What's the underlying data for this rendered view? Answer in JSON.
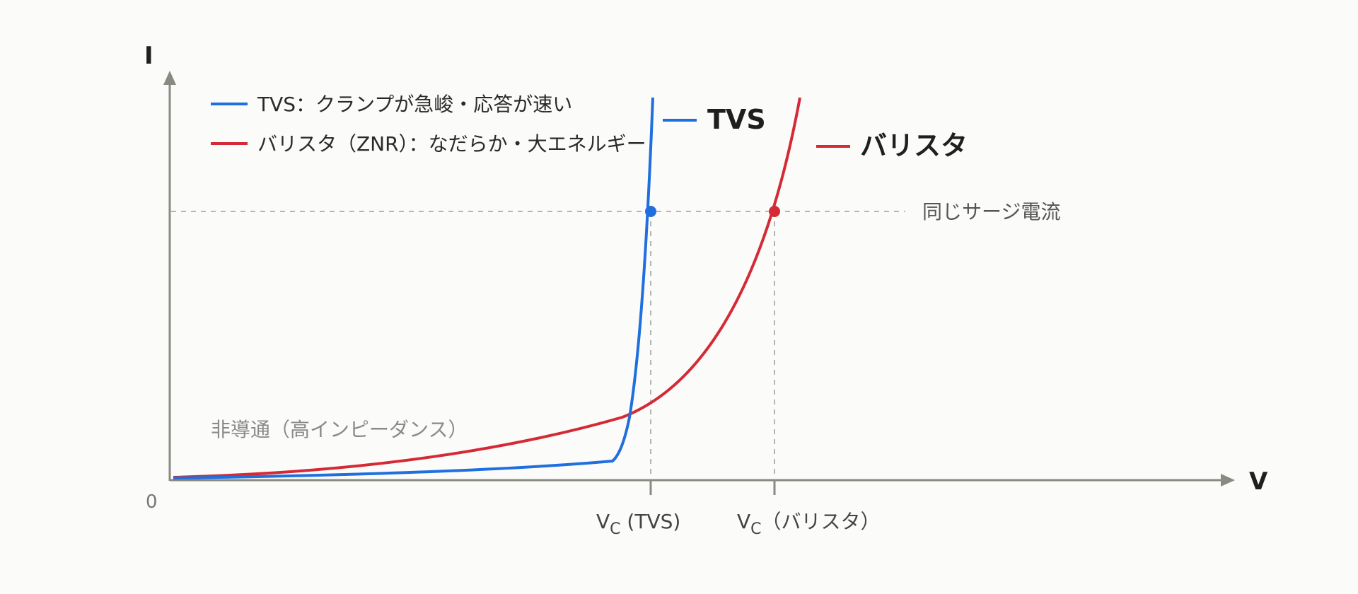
{
  "axes": {
    "y_label": "I",
    "x_label": "V",
    "origin_label": "0"
  },
  "legend": [
    {
      "label": "TVS：クランプが急峻・応答が速い",
      "color": "#1f6fde"
    },
    {
      "label": "バリスタ（ZNR）：なだらか・大エネルギー",
      "color": "#d42a36"
    }
  ],
  "series_tags": {
    "tvs": "TVS",
    "varistor": "バリスタ"
  },
  "annotations": {
    "same_surge": "同じサージ電流",
    "off_state": "非導通（高インピーダンス）"
  },
  "x_ticks": {
    "tvs": {
      "main": "V",
      "sub": "C",
      "suffix": " (TVS)"
    },
    "varistor": {
      "main": "V",
      "sub": "C",
      "suffix": "（バリスタ）"
    }
  },
  "colors": {
    "tvs": "#1f6fde",
    "varistor": "#d42a36",
    "axis": "#8a8a82",
    "guide": "#b5b5b0"
  }
}
